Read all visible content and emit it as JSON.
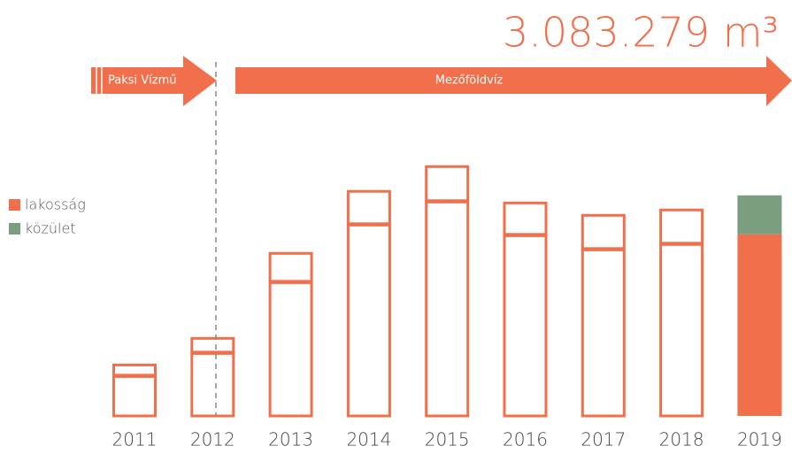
{
  "chart_data": {
    "type": "bar",
    "stacked": true,
    "title": "3.083.279 m³",
    "annotations": [
      "Paksi Vízmű",
      "Mezőföldvíz"
    ],
    "categories": [
      "2011",
      "2012",
      "2013",
      "2014",
      "2015",
      "2016",
      "2017",
      "2018",
      "2019"
    ],
    "series": [
      {
        "name": "lakosság",
        "color": "#f26f4b",
        "values": [
          570000,
          892000,
          1882000,
          2687000,
          3009000,
          2538000,
          2340000,
          2415000,
          2538279
        ]
      },
      {
        "name": "közület",
        "color": "#7a9e7e",
        "values": [
          161000,
          211000,
          409000,
          471000,
          495000,
          458000,
          483000,
          483000,
          545000
        ]
      }
    ],
    "filled": [
      false,
      false,
      false,
      false,
      false,
      false,
      false,
      false,
      true
    ],
    "ylim": [
      0,
      3600000
    ],
    "legend": "left"
  }
}
